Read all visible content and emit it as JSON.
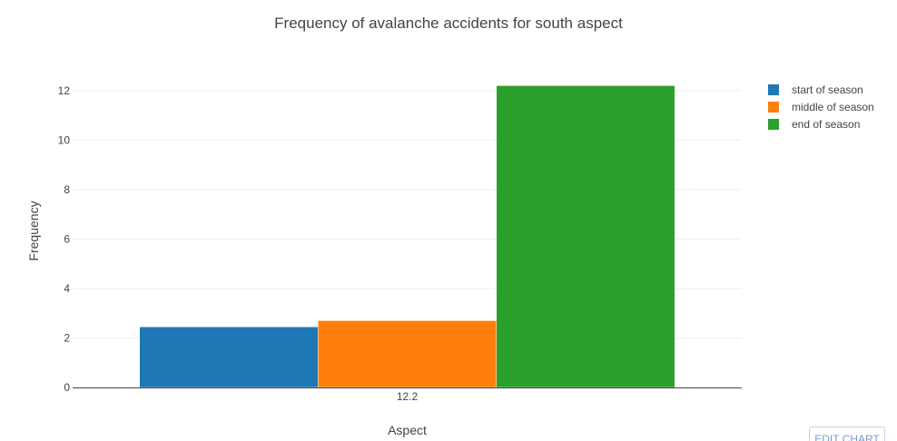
{
  "chart_data": {
    "type": "bar",
    "title": "Frequency of avalanche accidents for south aspect",
    "xlabel": "Aspect",
    "ylabel": "Frequency",
    "categories": [
      "12.2"
    ],
    "ylim": [
      0,
      12.8
    ],
    "yticks": [
      0,
      2,
      4,
      6,
      8,
      10,
      12
    ],
    "grid": true,
    "legend_position": "top-right",
    "series": [
      {
        "name": "start of season",
        "color": "#1f77b4",
        "values": [
          2.45
        ]
      },
      {
        "name": "middle of season",
        "color": "#ff7f0e",
        "values": [
          2.7
        ]
      },
      {
        "name": "end of season",
        "color": "#2ca02c",
        "values": [
          12.2
        ]
      }
    ]
  },
  "toolbar": {
    "edit_label": "EDIT CHART"
  }
}
